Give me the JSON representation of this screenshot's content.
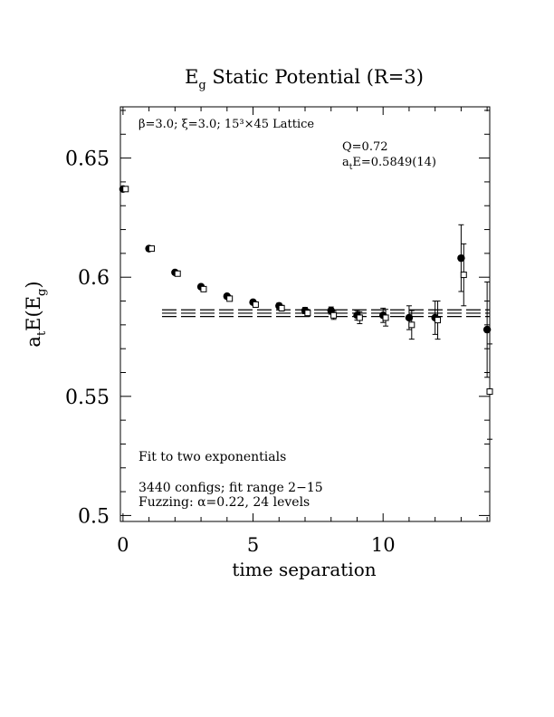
{
  "chart_data": {
    "type": "scatter",
    "title_main": "E",
    "title_sub": "g",
    "title_rest": " Static Potential (R=3)",
    "xlabel": "time separation",
    "ylabel_main": "a",
    "ylabel_sub1": "t",
    "ylabel_mid": "E(E",
    "ylabel_sub2": "g",
    "ylabel_end": ")",
    "xlim": [
      -0.1,
      14.1
    ],
    "ylim": [
      0.4975,
      0.6715
    ],
    "xticks": [
      0,
      5,
      10
    ],
    "xtick_labels": [
      "0",
      "5",
      "10"
    ],
    "yticks": [
      0.5,
      0.55,
      0.6,
      0.65
    ],
    "ytick_labels": [
      "0.5",
      "0.55",
      "0.6",
      "0.65"
    ],
    "lattice_text": "β=3.0; ξ=3.0; 15³×45 Lattice",
    "q_text": "Q=0.72",
    "energy_text_main": "a",
    "energy_text_sub": "t",
    "energy_text_rest": "E=0.5849(14)",
    "fit_text": "Fit to two exponentials",
    "configs_text": "3440 configs; fit range 2−15",
    "fuzz_text": "Fuzzing: α=0.22, 24 levels",
    "fit": {
      "value": 0.5849,
      "lower": 0.5835,
      "upper": 0.5863,
      "xmin": 1.5,
      "xmax": 14.1
    },
    "series": [
      {
        "marker": "filled-circle",
        "x": [
          0,
          1,
          2,
          3,
          4,
          5,
          6,
          7,
          8,
          9,
          10,
          11,
          12,
          13,
          14
        ],
        "y": [
          0.637,
          0.612,
          0.602,
          0.596,
          0.592,
          0.5895,
          0.588,
          0.586,
          0.586,
          0.584,
          0.584,
          0.583,
          0.583,
          0.608,
          0.578
        ],
        "err": [
          0.0005,
          0.0005,
          0.0006,
          0.0007,
          0.0008,
          0.0009,
          0.0011,
          0.0013,
          0.0015,
          0.002,
          0.003,
          0.005,
          0.007,
          0.014,
          0.02
        ]
      },
      {
        "marker": "open-square",
        "x": [
          0.1,
          1.1,
          2.1,
          3.1,
          4.1,
          5.1,
          6.1,
          7.1,
          8.1,
          9.1,
          10.1,
          11.1,
          12.1,
          13.1,
          14.1
        ],
        "y": [
          0.637,
          0.612,
          0.6015,
          0.595,
          0.591,
          0.5885,
          0.587,
          0.585,
          0.584,
          0.583,
          0.583,
          0.58,
          0.582,
          0.601,
          0.552
        ],
        "err": [
          0.0005,
          0.0005,
          0.0006,
          0.0007,
          0.0008,
          0.001,
          0.0012,
          0.0014,
          0.0017,
          0.0025,
          0.0035,
          0.006,
          0.008,
          0.013,
          0.02
        ]
      }
    ]
  }
}
